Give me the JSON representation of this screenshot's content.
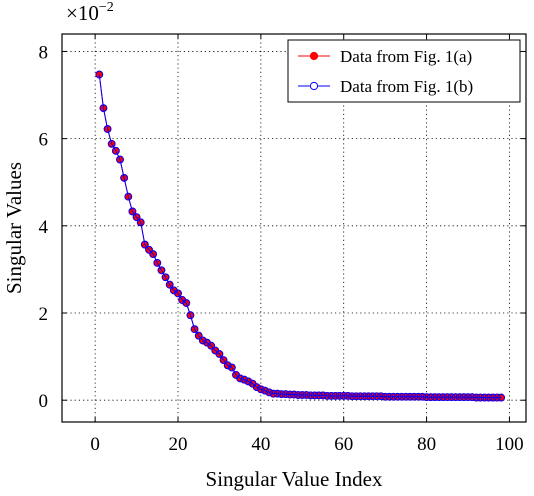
{
  "chart_data": {
    "type": "line",
    "xlabel": "Singular Value Index",
    "ylabel": "Singular Values",
    "y_multiplier": {
      "base": "×10",
      "exponent": "−2"
    },
    "xlim": [
      -8,
      104
    ],
    "ylim": [
      -0.5,
      8.4
    ],
    "x_ticks": [
      0,
      20,
      40,
      60,
      80,
      100
    ],
    "y_ticks": [
      0,
      2,
      4,
      6,
      8
    ],
    "grid": true,
    "grid_style": "dotted",
    "legend_position": "top-right",
    "x": [
      1,
      2,
      3,
      4,
      5,
      6,
      7,
      8,
      9,
      10,
      11,
      12,
      13,
      14,
      15,
      16,
      17,
      18,
      19,
      20,
      21,
      22,
      23,
      24,
      25,
      26,
      27,
      28,
      29,
      30,
      31,
      32,
      33,
      34,
      35,
      36,
      37,
      38,
      39,
      40,
      41,
      42,
      43,
      44,
      45,
      46,
      47,
      48,
      49,
      50,
      51,
      52,
      53,
      54,
      55,
      56,
      57,
      58,
      59,
      60,
      61,
      62,
      63,
      64,
      65,
      66,
      67,
      68,
      69,
      70,
      71,
      72,
      73,
      74,
      75,
      76,
      77,
      78,
      79,
      80,
      81,
      82,
      83,
      84,
      85,
      86,
      87,
      88,
      89,
      90,
      91,
      92,
      93,
      94,
      95,
      96,
      97,
      98
    ],
    "series": [
      {
        "name": "Data from Fig. 1(a)",
        "color": "#ff0000",
        "line_color": "#ff0000",
        "marker": "filled-circle",
        "values": [
          7.47,
          6.7,
          6.22,
          5.88,
          5.72,
          5.52,
          5.1,
          4.67,
          4.33,
          4.2,
          4.08,
          3.57,
          3.45,
          3.35,
          3.15,
          2.98,
          2.82,
          2.65,
          2.52,
          2.45,
          2.3,
          2.23,
          1.95,
          1.63,
          1.48,
          1.37,
          1.32,
          1.25,
          1.14,
          1.06,
          0.92,
          0.8,
          0.75,
          0.58,
          0.5,
          0.47,
          0.43,
          0.38,
          0.3,
          0.25,
          0.22,
          0.18,
          0.15,
          0.15,
          0.14,
          0.14,
          0.13,
          0.13,
          0.12,
          0.12,
          0.12,
          0.11,
          0.11,
          0.11,
          0.11,
          0.1,
          0.1,
          0.1,
          0.1,
          0.1,
          0.1,
          0.09,
          0.09,
          0.09,
          0.09,
          0.09,
          0.09,
          0.09,
          0.09,
          0.08,
          0.08,
          0.08,
          0.08,
          0.08,
          0.08,
          0.08,
          0.08,
          0.08,
          0.08,
          0.07,
          0.07,
          0.07,
          0.07,
          0.07,
          0.07,
          0.07,
          0.07,
          0.07,
          0.07,
          0.07,
          0.07,
          0.06,
          0.06,
          0.06,
          0.06,
          0.06,
          0.06,
          0.06
        ]
      },
      {
        "name": "Data from Fig. 1(b)",
        "color": "#0000ff",
        "line_color": "#0000ff",
        "marker": "open-circle",
        "values": [
          7.47,
          6.7,
          6.22,
          5.88,
          5.72,
          5.52,
          5.1,
          4.67,
          4.33,
          4.2,
          4.08,
          3.57,
          3.45,
          3.35,
          3.15,
          2.98,
          2.82,
          2.65,
          2.52,
          2.45,
          2.3,
          2.23,
          1.95,
          1.63,
          1.48,
          1.37,
          1.32,
          1.25,
          1.14,
          1.06,
          0.92,
          0.8,
          0.75,
          0.58,
          0.5,
          0.47,
          0.43,
          0.38,
          0.3,
          0.25,
          0.22,
          0.18,
          0.15,
          0.15,
          0.14,
          0.14,
          0.13,
          0.13,
          0.12,
          0.12,
          0.12,
          0.11,
          0.11,
          0.11,
          0.11,
          0.1,
          0.1,
          0.1,
          0.1,
          0.1,
          0.1,
          0.09,
          0.09,
          0.09,
          0.09,
          0.09,
          0.09,
          0.09,
          0.09,
          0.08,
          0.08,
          0.08,
          0.08,
          0.08,
          0.08,
          0.08,
          0.08,
          0.08,
          0.08,
          0.07,
          0.07,
          0.07,
          0.07,
          0.07,
          0.07,
          0.07,
          0.07,
          0.07,
          0.07,
          0.07,
          0.07,
          0.06,
          0.06,
          0.06,
          0.06,
          0.06,
          0.06,
          0.06
        ]
      }
    ]
  }
}
